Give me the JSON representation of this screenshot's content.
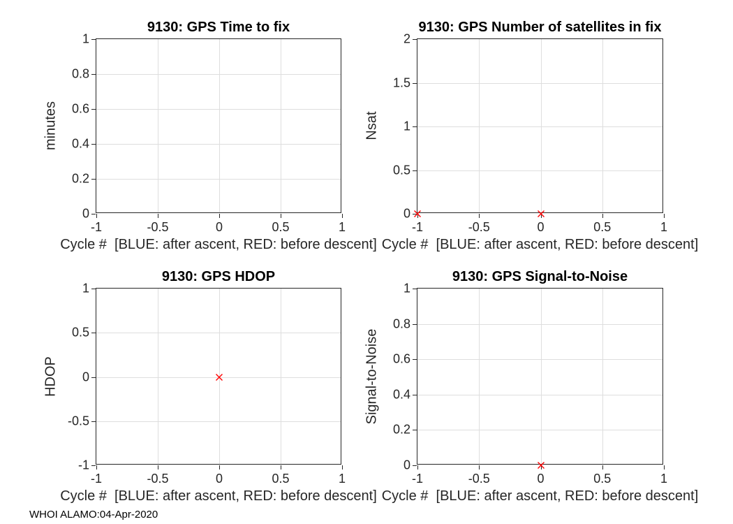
{
  "figure": {
    "footer": "WHOI ALAMO:04-Apr-2020",
    "background_color": "#ffffff",
    "axis_color": "#262626",
    "grid_color": "#dedede",
    "title_color": "#000000",
    "marker_red_meaning": "before descent",
    "marker_blue_meaning": "after ascent"
  },
  "chart_data": [
    {
      "type": "scatter",
      "title": "9130: GPS Time to fix",
      "xlabel": "Cycle #  [BLUE: after ascent, RED: before descent]",
      "ylabel": "minutes",
      "xlim": [
        -1,
        1
      ],
      "ylim": [
        0,
        1
      ],
      "xticks": [
        -1,
        -0.5,
        0,
        0.5,
        1
      ],
      "xtick_labels": [
        "-1",
        "-0.5",
        "0",
        "0.5",
        "1"
      ],
      "yticks": [
        0,
        0.2,
        0.4,
        0.6,
        0.8,
        1
      ],
      "ytick_labels": [
        "0",
        "0.2",
        "0.4",
        "0.6",
        "0.8",
        "1"
      ],
      "grid": true,
      "series": []
    },
    {
      "type": "scatter",
      "title": "9130: GPS Number of satellites in fix",
      "xlabel": "Cycle #  [BLUE: after ascent, RED: before descent]",
      "ylabel": "Nsat",
      "xlim": [
        -1,
        1
      ],
      "ylim": [
        0,
        2
      ],
      "xticks": [
        -1,
        -0.5,
        0,
        0.5,
        1
      ],
      "xtick_labels": [
        "-1",
        "-0.5",
        "0",
        "0.5",
        "1"
      ],
      "yticks": [
        0,
        0.5,
        1,
        1.5,
        2
      ],
      "ytick_labels": [
        "0",
        "0.5",
        "1",
        "1.5",
        "2"
      ],
      "grid": true,
      "series": [
        {
          "name": "before descent",
          "marker": "x",
          "color": "#ff0000",
          "points": [
            [
              -1,
              0
            ],
            [
              0,
              0
            ]
          ]
        }
      ]
    },
    {
      "type": "scatter",
      "title": "9130: GPS HDOP",
      "xlabel": "Cycle #  [BLUE: after ascent, RED: before descent]",
      "ylabel": "HDOP",
      "xlim": [
        -1,
        1
      ],
      "ylim": [
        -1,
        1
      ],
      "xticks": [
        -1,
        -0.5,
        0,
        0.5,
        1
      ],
      "xtick_labels": [
        "-1",
        "-0.5",
        "0",
        "0.5",
        "1"
      ],
      "yticks": [
        -1,
        -0.5,
        0,
        0.5,
        1
      ],
      "ytick_labels": [
        "-1",
        "-0.5",
        "0",
        "0.5",
        "1"
      ],
      "grid": true,
      "series": [
        {
          "name": "before descent",
          "marker": "x",
          "color": "#ff0000",
          "points": [
            [
              0,
              0
            ]
          ]
        }
      ]
    },
    {
      "type": "scatter",
      "title": "9130: GPS Signal-to-Noise",
      "xlabel": "Cycle #  [BLUE: after ascent, RED: before descent]",
      "ylabel": "Signal-to-Noise",
      "xlim": [
        -1,
        1
      ],
      "ylim": [
        0,
        1
      ],
      "xticks": [
        -1,
        -0.5,
        0,
        0.5,
        1
      ],
      "xtick_labels": [
        "-1",
        "-0.5",
        "0",
        "0.5",
        "1"
      ],
      "yticks": [
        0,
        0.2,
        0.4,
        0.6,
        0.8,
        1
      ],
      "ytick_labels": [
        "0",
        "0.2",
        "0.4",
        "0.6",
        "0.8",
        "1"
      ],
      "grid": true,
      "series": [
        {
          "name": "before descent",
          "marker": "x",
          "color": "#ff0000",
          "points": [
            [
              0,
              0
            ]
          ]
        }
      ]
    }
  ]
}
